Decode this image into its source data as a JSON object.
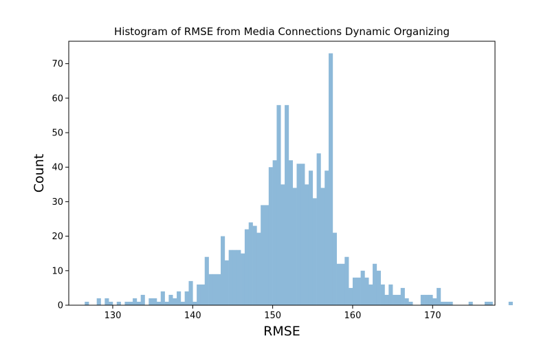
{
  "chart_data": {
    "type": "bar",
    "title": "Histogram of RMSE from Media Connections Dynamic Organizing",
    "xlabel": "RMSE",
    "ylabel": "Count",
    "xlim": [
      124.5,
      177.8
    ],
    "ylim": [
      0,
      76.5
    ],
    "xticks": [
      130,
      140,
      150,
      160,
      170
    ],
    "yticks": [
      0,
      10,
      20,
      30,
      40,
      50,
      60,
      70
    ],
    "bin_start": 126.5,
    "bin_width": 0.5,
    "bar_color": "#8db9d9",
    "counts": [
      1,
      0,
      0,
      2,
      0,
      2,
      1,
      0,
      1,
      0,
      1,
      1,
      2,
      1,
      3,
      0,
      2,
      2,
      1,
      4,
      1,
      3,
      2,
      4,
      1,
      4,
      7,
      1,
      6,
      6,
      14,
      9,
      9,
      9,
      20,
      13,
      16,
      16,
      16,
      15,
      22,
      24,
      23,
      21,
      29,
      29,
      40,
      42,
      58,
      35,
      58,
      42,
      34,
      41,
      41,
      35,
      39,
      31,
      44,
      34,
      39,
      73,
      21,
      12,
      12,
      14,
      5,
      8,
      8,
      10,
      8,
      6,
      12,
      10,
      6,
      3,
      6,
      3,
      3,
      5,
      2,
      1,
      0,
      0,
      3,
      3,
      3,
      2,
      5,
      1,
      1,
      1,
      0,
      0,
      0,
      0,
      1,
      0,
      0,
      0,
      1,
      1,
      0,
      0,
      0,
      0,
      1
    ]
  }
}
